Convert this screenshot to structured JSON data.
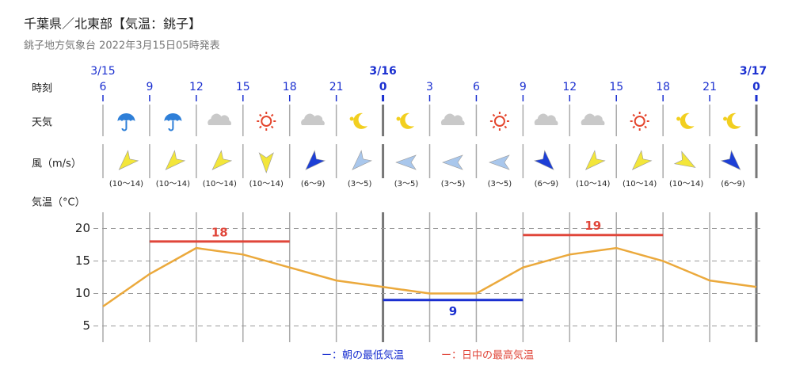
{
  "header": {
    "title": "千葉県／北東部【気温：銚子】",
    "subtitle": "銚子地方気象台 2022年3月15日05時発表"
  },
  "rows": {
    "time": "時刻",
    "weather": "天気",
    "wind": "風（m/s）",
    "temperature": "気温（°C）"
  },
  "wind_speeds": [
    "(10〜14)",
    "(10〜14)",
    "(10〜14)",
    "(10〜14)",
    "(6〜9)",
    "(3〜5)",
    "(3〜5)",
    "(3〜5)",
    "(3〜5)",
    "(6〜9)",
    "(10〜14)",
    "(10〜14)",
    "(10〜14)",
    "(6〜9)"
  ],
  "chart_data": {
    "type": "line",
    "dates": [
      "3/15",
      null,
      null,
      null,
      null,
      null,
      "3/16",
      null,
      null,
      null,
      null,
      null,
      null,
      null,
      "3/17"
    ],
    "categories": [
      "6",
      "9",
      "12",
      "15",
      "18",
      "21",
      "0",
      "3",
      "6",
      "9",
      "12",
      "15",
      "18",
      "21",
      "0"
    ],
    "series": [
      {
        "name": "気温",
        "color": "#eba93c",
        "values": [
          8,
          13,
          17,
          16,
          14,
          12,
          11,
          10,
          10,
          14,
          16,
          17,
          15,
          12,
          11
        ]
      },
      {
        "name": "ー：朝の最低気温",
        "color": "#1a2fd0",
        "values": [
          null,
          null,
          null,
          null,
          null,
          null,
          9,
          9,
          9,
          9,
          null,
          null,
          null,
          null,
          null
        ]
      },
      {
        "name": "ー：日中の最高気温",
        "color": "#e0463a",
        "values": [
          null,
          18,
          18,
          18,
          18,
          null,
          null,
          null,
          null,
          19,
          19,
          19,
          19,
          null,
          null
        ]
      }
    ],
    "ylim": [
      2.5,
      22.5
    ],
    "yticks": [
      5,
      10,
      15,
      20
    ],
    "grid": true
  }
}
